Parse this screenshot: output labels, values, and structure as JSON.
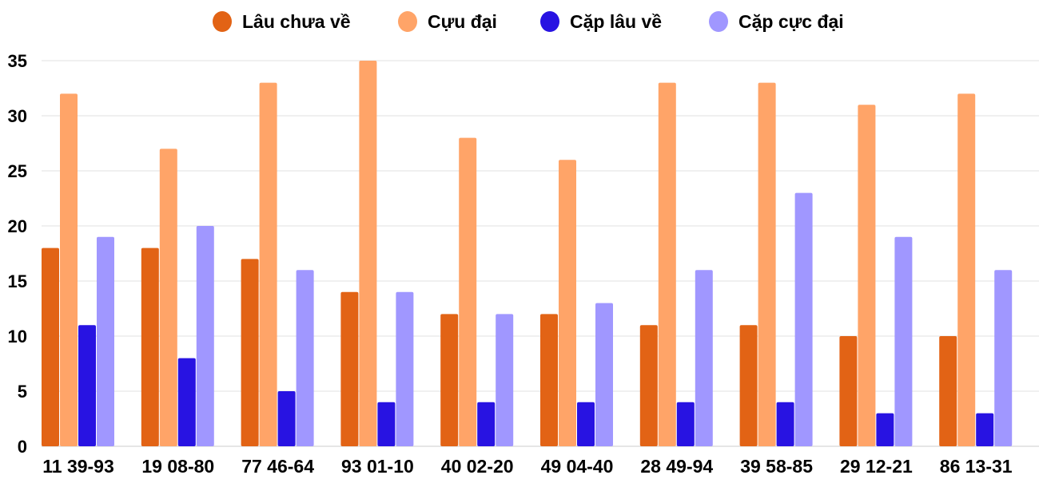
{
  "chart_data": {
    "type": "bar",
    "title": "",
    "xlabel": "",
    "ylabel": "",
    "ylim": [
      0,
      35
    ],
    "yticks": [
      0,
      5,
      10,
      15,
      20,
      25,
      30,
      35
    ],
    "grid": true,
    "legend_position": "top",
    "categories": [
      "11 39-93",
      "19 08-80",
      "77 46-64",
      "93 01-10",
      "40 02-20",
      "49 04-40",
      "28 49-94",
      "39 58-85",
      "29 12-21",
      "86 13-31"
    ],
    "series": [
      {
        "name": "Lâu chưa về",
        "color": "#e26315",
        "values": [
          18,
          18,
          17,
          14,
          12,
          12,
          11,
          11,
          10,
          10
        ]
      },
      {
        "name": "Cựu đại",
        "color": "#ffa468",
        "values": [
          32,
          27,
          33,
          35,
          28,
          26,
          33,
          33,
          31,
          32
        ]
      },
      {
        "name": "Cặp lâu về",
        "color": "#2813e2",
        "values": [
          11,
          8,
          5,
          4,
          4,
          4,
          4,
          4,
          3,
          3
        ]
      },
      {
        "name": "Cặp cực đại",
        "color": "#a097ff",
        "values": [
          19,
          20,
          16,
          14,
          12,
          13,
          16,
          23,
          19,
          16
        ]
      }
    ]
  }
}
